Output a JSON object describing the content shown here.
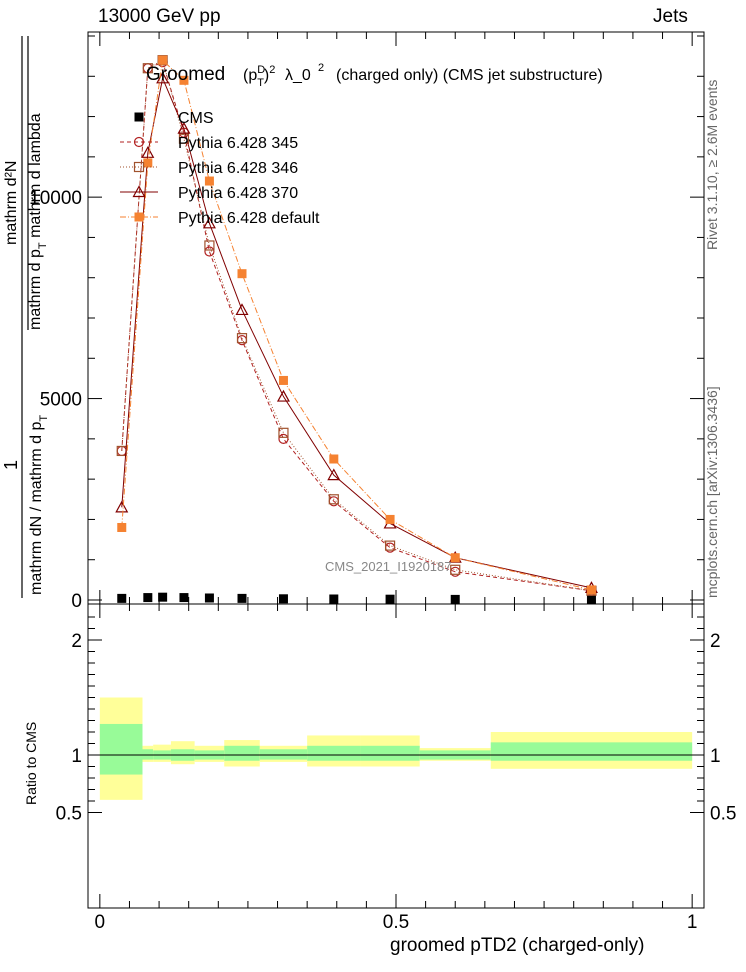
{
  "header": {
    "left": "13000 GeV pp",
    "right": "Jets"
  },
  "side": {
    "rivet": "Rivet 3.1.10, ≥ 2.6M events",
    "mcplots": "mcplots.cern.ch [arXiv:1306.3436]"
  },
  "watermark": "CMS_2021_I1920187",
  "title": {
    "groomed": "Groomed",
    "rest": "λ_0",
    "tail": "(charged only) (CMS jet substructure)"
  },
  "ylabel_main": {
    "frac_num": "1",
    "frac_den": "mathrm dN / mathrm d p",
    "d2_num": "mathrm d²N",
    "d2_den": "mathrm d p",
    "d2_tail": "mathrm d lambda"
  },
  "ylabel_ratio": "Ratio to CMS",
  "xlabel": "groomed pTD2 (charged-only)",
  "colors": {
    "cms": "#000000",
    "p345": "#b22222",
    "p346": "#a0522d",
    "p370": "#800000",
    "pdefault": "#f58231",
    "band_inner": "#98fb98",
    "band_outer": "#ffff99"
  },
  "chart_data": [
    {
      "type": "line",
      "panel": "main",
      "ylim": [
        0,
        14000
      ],
      "xlim": [
        -0.02,
        1.02
      ],
      "yticks": [
        0,
        5000,
        10000
      ],
      "ytick_labels": [
        "0",
        "5000",
        "10000"
      ],
      "grid": false,
      "legend_position": "top-left",
      "x": [
        0.037,
        0.081,
        0.106,
        0.142,
        0.185,
        0.24,
        0.31,
        0.395,
        0.49,
        0.6,
        0.83
      ],
      "x_edges": [
        0.0,
        0.072,
        0.09,
        0.12,
        0.16,
        0.21,
        0.27,
        0.35,
        0.44,
        0.54,
        0.66,
        1.0
      ],
      "series": [
        {
          "name": "CMS",
          "marker": "square-filled",
          "color": "#000000",
          "values": [
            40,
            60,
            70,
            60,
            50,
            40,
            30,
            25,
            20,
            15,
            10
          ]
        },
        {
          "name": "Pythia 6.428 345",
          "marker": "circle-open",
          "color": "#b22222",
          "dash": "4,3",
          "values": [
            3700,
            13200,
            13350,
            11600,
            8650,
            6450,
            4000,
            2450,
            1300,
            700,
            230
          ]
        },
        {
          "name": "Pythia 6.428 346",
          "marker": "square-open",
          "color": "#a0522d",
          "dash": "1,2",
          "values": [
            3700,
            13200,
            13400,
            11450,
            8800,
            6500,
            4150,
            2500,
            1350,
            750,
            230
          ]
        },
        {
          "name": "Pythia 6.428 370",
          "marker": "triangle-open",
          "color": "#800000",
          "dash": "",
          "values": [
            2300,
            11100,
            12950,
            11700,
            9350,
            7200,
            5050,
            3100,
            1900,
            1050,
            300
          ]
        },
        {
          "name": "Pythia 6.428 default",
          "marker": "square-filled",
          "color": "#f58231",
          "dash": "6,2,1,2",
          "values": [
            1800,
            10850,
            13400,
            12900,
            10400,
            8100,
            5450,
            3500,
            2000,
            1050,
            250
          ]
        }
      ]
    },
    {
      "type": "area",
      "panel": "ratio",
      "ylim": [
        0.35,
        2.3
      ],
      "xlim": [
        -0.02,
        1.02
      ],
      "yticks": [
        0.5,
        1,
        2
      ],
      "ytick_labels": [
        "0.5",
        "1",
        "2"
      ],
      "xticks": [
        0,
        0.5,
        1
      ],
      "xtick_labels": [
        "0",
        "0.5",
        "1"
      ],
      "x_edges": [
        0.0,
        0.072,
        0.09,
        0.12,
        0.16,
        0.21,
        0.27,
        0.35,
        0.44,
        0.54,
        0.66,
        1.0
      ],
      "band_inner": [
        [
          0.83,
          1.27
        ],
        [
          0.96,
          1.05
        ],
        [
          0.96,
          1.04
        ],
        [
          0.95,
          1.05
        ],
        [
          0.96,
          1.04
        ],
        [
          0.95,
          1.08
        ],
        [
          0.96,
          1.05
        ],
        [
          0.95,
          1.08
        ],
        [
          0.95,
          1.08
        ],
        [
          0.96,
          1.04
        ],
        [
          0.95,
          1.11
        ]
      ],
      "band_outer": [
        [
          0.61,
          1.5
        ],
        [
          0.94,
          1.08
        ],
        [
          0.94,
          1.09
        ],
        [
          0.92,
          1.12
        ],
        [
          0.94,
          1.08
        ],
        [
          0.9,
          1.13
        ],
        [
          0.94,
          1.08
        ],
        [
          0.9,
          1.17
        ],
        [
          0.9,
          1.17
        ],
        [
          0.95,
          1.06
        ],
        [
          0.88,
          1.2
        ]
      ]
    }
  ]
}
